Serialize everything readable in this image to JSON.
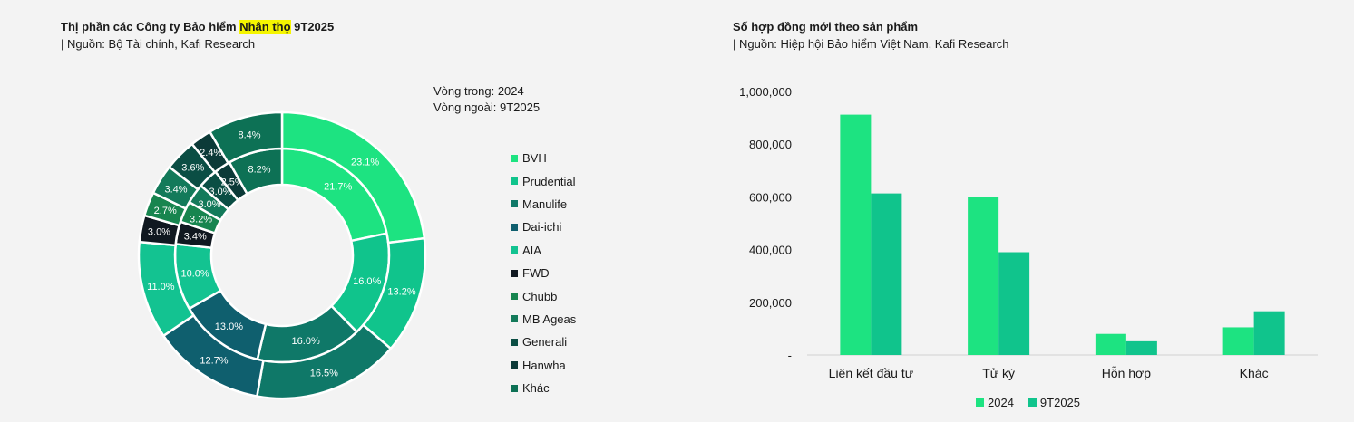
{
  "left": {
    "title_prefix": "Thị phần các Công ty Bảo hiểm ",
    "title_highlight": "Nhân thọ",
    "title_suffix": " 9T2025",
    "source": "| Nguồn: Bộ Tài chính, Kafi Research",
    "note_inner": "Vòng trong: 2024",
    "note_outer": "Vòng ngoài: 9T2025"
  },
  "right": {
    "title": "Số hợp đồng mới theo sản phẩm",
    "source": "| Nguồn: Hiệp hội Bảo hiểm Việt Nam, Kafi Research"
  },
  "chart_data": [
    {
      "type": "pie",
      "subtype": "donut",
      "categories": [
        "BVH",
        "Prudential",
        "Manulife",
        "Dai-ichi",
        "AIA",
        "FWD",
        "Chubb",
        "MB Ageas",
        "Generali",
        "Hanwha",
        "Khác"
      ],
      "colors": [
        "#1de381",
        "#10c48c",
        "#0f7868",
        "#0f5f6e",
        "#13c391",
        "#101820",
        "#17854f",
        "#137a5a",
        "#0b4e44",
        "#0c3a38",
        "#0d7155"
      ],
      "series": [
        {
          "name": "2024",
          "ring": "inner",
          "values": [
            21.7,
            16.0,
            16.0,
            13.0,
            10.0,
            3.4,
            3.2,
            3.0,
            3.0,
            2.5,
            8.2
          ],
          "labels": [
            "21.7%",
            "16.0%",
            "16.0%",
            "13.0%",
            "10.0%",
            "3.4%",
            "3.2%",
            "3.0%",
            "3.0%",
            "2.5%",
            "8.2%"
          ]
        },
        {
          "name": "9T2025",
          "ring": "outer",
          "values": [
            23.1,
            13.2,
            16.5,
            12.7,
            11.0,
            3.0,
            2.7,
            3.4,
            3.6,
            2.4,
            8.4
          ],
          "labels": [
            "23.1%",
            "13.2%",
            "16.5%",
            "12.7%",
            "11.0%",
            "3.0%",
            "2.7%",
            "3.4%",
            "3.6%",
            "2.4%",
            "8.4%"
          ]
        }
      ],
      "legend": "right"
    },
    {
      "type": "bar",
      "categories": [
        "Liên kết đầu tư",
        "Tử kỳ",
        "Hỗn hợp",
        "Khác"
      ],
      "series": [
        {
          "name": "2024",
          "color": "#1de381",
          "values": [
            912000,
            600000,
            80000,
            105000
          ]
        },
        {
          "name": "9T2025",
          "color": "#10c48c",
          "values": [
            613000,
            390000,
            52000,
            166000
          ]
        }
      ],
      "ylim": [
        0,
        1000000
      ],
      "yticks": [
        "-",
        "200,000",
        "400,000",
        "600,000",
        "800,000",
        "1,000,000"
      ],
      "grid": false,
      "legend": "bottom"
    }
  ]
}
